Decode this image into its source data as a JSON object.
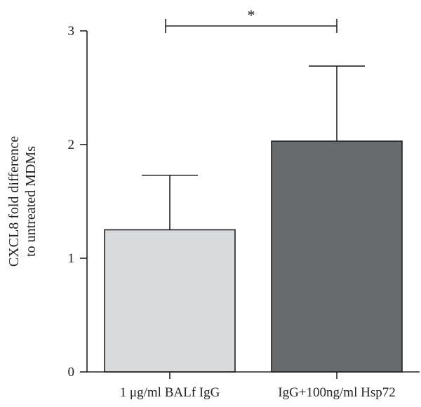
{
  "chart_data": {
    "type": "bar",
    "categories": [
      "1 μg/ml BALf IgG",
      "IgG+100ng/ml Hsp72"
    ],
    "values": [
      1.25,
      2.03
    ],
    "errors": [
      0.48,
      0.66
    ],
    "colors": [
      "#d9dadc",
      "#686b6e"
    ],
    "title": "",
    "xlabel": "",
    "ylabel": [
      "CXCL8 fold difference",
      "to untreated MDMs"
    ],
    "ylim": [
      0,
      3
    ],
    "yticks": [
      0,
      1,
      2,
      3
    ],
    "grid": false,
    "significance": {
      "between": [
        0,
        1
      ],
      "label": "*"
    }
  }
}
